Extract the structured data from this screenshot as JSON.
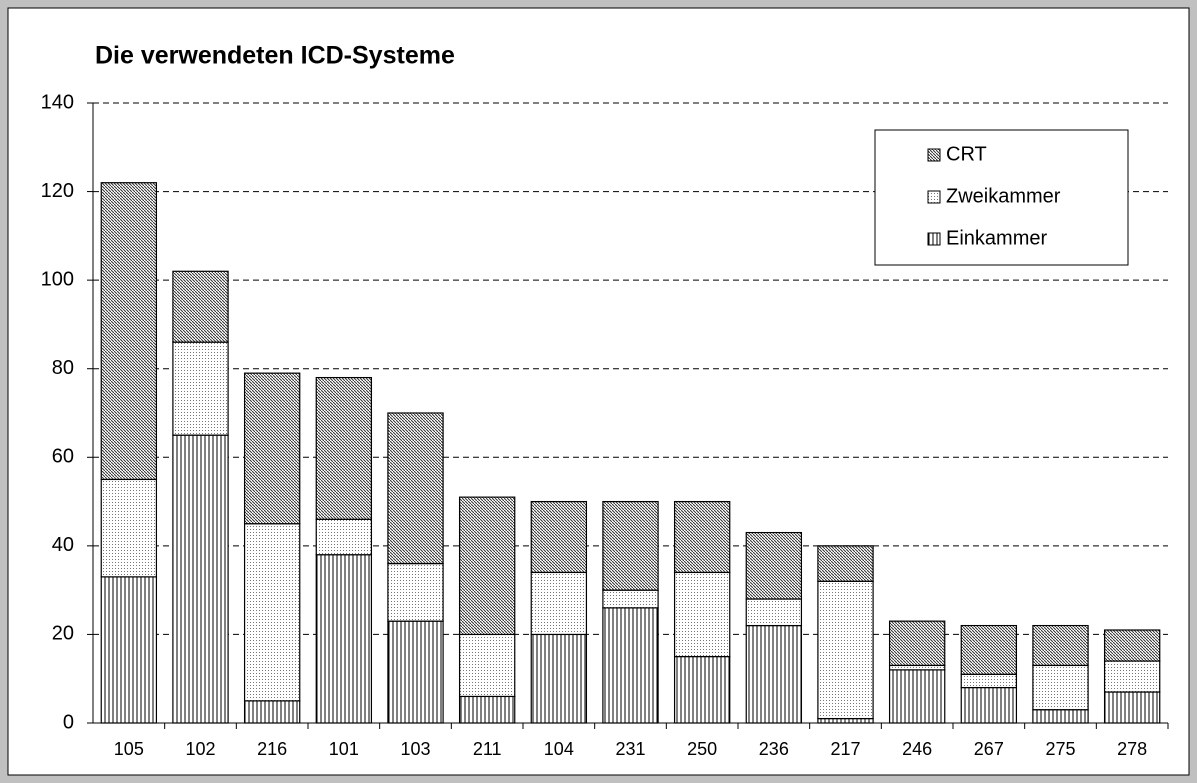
{
  "chart_data": {
    "type": "stacked_bar",
    "title": "Die verwendeten ICD-Systeme",
    "categories": [
      "105",
      "102",
      "216",
      "101",
      "103",
      "211",
      "104",
      "231",
      "250",
      "236",
      "217",
      "246",
      "267",
      "275",
      "278"
    ],
    "series": [
      {
        "name": "Einkammer",
        "color": "#000000",
        "values": [
          33,
          65,
          5,
          38,
          23,
          6,
          20,
          26,
          15,
          22,
          1,
          12,
          8,
          3,
          7
        ]
      },
      {
        "name": "Zweikammer",
        "color": "#000000",
        "values": [
          22,
          21,
          40,
          8,
          13,
          14,
          14,
          4,
          19,
          6,
          31,
          1,
          3,
          10,
          7
        ]
      },
      {
        "name": "CRT",
        "color": "#000000",
        "values": [
          67,
          16,
          34,
          32,
          34,
          31,
          16,
          20,
          16,
          15,
          8,
          10,
          11,
          9,
          7
        ]
      }
    ],
    "ylim": [
      0,
      140
    ],
    "yticks": [
      0,
      20,
      40,
      60,
      80,
      100,
      120,
      140
    ],
    "grid": true,
    "legend": "upper right"
  }
}
